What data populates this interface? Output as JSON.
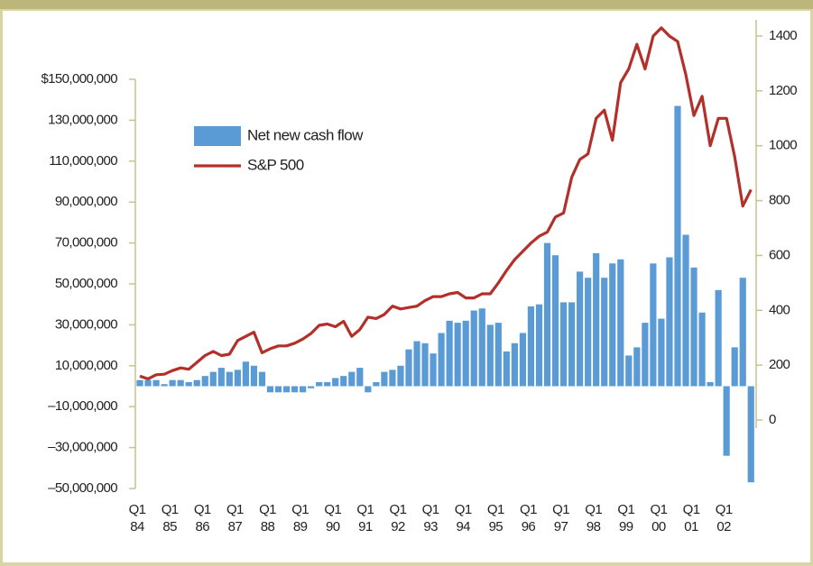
{
  "chart_data": {
    "type": "bar",
    "categories": [
      "Q1 84",
      null,
      null,
      null,
      "Q1 85",
      null,
      null,
      null,
      "Q1 86",
      null,
      null,
      null,
      "Q1 87",
      null,
      null,
      null,
      "Q1 88",
      null,
      null,
      null,
      "Q1 89",
      null,
      null,
      null,
      "Q1 90",
      null,
      null,
      null,
      "Q1 91",
      null,
      null,
      null,
      "Q1 92",
      null,
      null,
      null,
      "Q1 93",
      null,
      null,
      null,
      "Q1 94",
      null,
      null,
      null,
      "Q1 95",
      null,
      null,
      null,
      "Q1 96",
      null,
      null,
      null,
      "Q1 97",
      null,
      null,
      null,
      "Q1 98",
      null,
      null,
      null,
      "Q1 99",
      null,
      null,
      null,
      "Q1 00",
      null,
      null,
      null,
      "Q1 01",
      null,
      null,
      null,
      "Q1 02",
      null,
      null,
      null
    ],
    "series": [
      {
        "name": "Net new cash flow",
        "type": "bar",
        "color": "#5b9bd5",
        "values": [
          3000000,
          3000000,
          3000000,
          1000000,
          3000000,
          3000000,
          2000000,
          3000000,
          5000000,
          7000000,
          9000000,
          7000000,
          8000000,
          12000000,
          10000000,
          7000000,
          -3000000,
          -3000000,
          -3000000,
          -3000000,
          -3000000,
          -1000000,
          2000000,
          2000000,
          4000000,
          5000000,
          7000000,
          9000000,
          -3000000,
          2000000,
          7000000,
          8000000,
          10000000,
          18000000,
          22000000,
          21000000,
          16000000,
          26000000,
          32000000,
          31000000,
          32000000,
          37000000,
          38000000,
          30000000,
          31000000,
          17000000,
          21000000,
          26000000,
          39000000,
          40000000,
          70000000,
          64000000,
          41000000,
          41000000,
          56000000,
          53000000,
          65000000,
          53000000,
          60000000,
          62000000,
          15000000,
          19000000,
          31000000,
          60000000,
          33000000,
          63000000,
          137000000,
          74000000,
          58000000,
          36000000,
          2000000,
          47000000,
          -34000000,
          19000000,
          53000000,
          -47000000
        ]
      },
      {
        "name": "S&P 500",
        "type": "line",
        "axis": "y2",
        "color": "#b3302a",
        "values": [
          160,
          150,
          165,
          167,
          180,
          190,
          185,
          210,
          235,
          250,
          235,
          240,
          290,
          305,
          320,
          245,
          260,
          270,
          270,
          280,
          295,
          315,
          345,
          350,
          340,
          360,
          305,
          330,
          375,
          370,
          385,
          415,
          405,
          410,
          415,
          435,
          450,
          450,
          460,
          465,
          445,
          445,
          460,
          460,
          500,
          545,
          585,
          615,
          645,
          670,
          685,
          740,
          755,
          885,
          950,
          970,
          1100,
          1130,
          1020,
          1230,
          1280,
          1370,
          1280,
          1400,
          1430,
          1400,
          1380,
          1260,
          1110,
          1180,
          1000,
          1100,
          1100,
          960,
          780,
          840
        ]
      }
    ],
    "ylim": [
      -50000000,
      150000000
    ],
    "yticks": [
      {
        "value": -50000000,
        "label": "–50,000,000"
      },
      {
        "value": -30000000,
        "label": "–30,000,000"
      },
      {
        "value": -10000000,
        "label": "–10,000,000"
      },
      {
        "value": 10000000,
        "label": "10,000,000"
      },
      {
        "value": 30000000,
        "label": "30,000,000"
      },
      {
        "value": 50000000,
        "label": "50,000,000"
      },
      {
        "value": 70000000,
        "label": "70,000,000"
      },
      {
        "value": 90000000,
        "label": "90,000,000"
      },
      {
        "value": 110000000,
        "label": "110,000,000"
      },
      {
        "value": 130000000,
        "label": "130,000,000"
      },
      {
        "value": 150000000,
        "label": "$150,000,000"
      }
    ],
    "y2lim": [
      0,
      1400
    ],
    "y2ticks": [
      0,
      200,
      400,
      600,
      800,
      1000,
      1200,
      1400
    ]
  }
}
